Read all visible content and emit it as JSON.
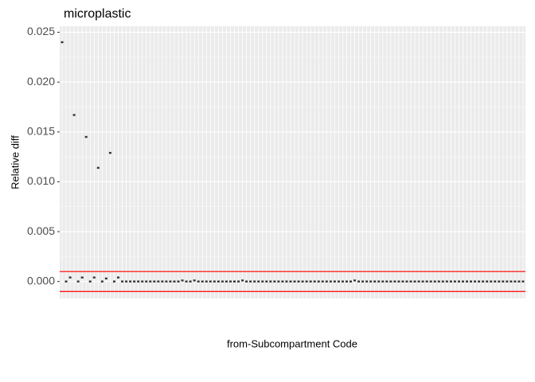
{
  "chart_data": {
    "type": "point",
    "title": "microplastic",
    "x_label": "from-Subcompartment Code",
    "y_label": "Relative diff",
    "categories": [
      null,
      null,
      null,
      null,
      null,
      null,
      null,
      null,
      null,
      null,
      null,
      null,
      null,
      null,
      null,
      null,
      null,
      null,
      null,
      null,
      null,
      null,
      null,
      null,
      null,
      null,
      null,
      null,
      null,
      null,
      null,
      null,
      null,
      null,
      null,
      null,
      null,
      null,
      null,
      null,
      null,
      null,
      null,
      null,
      null,
      null,
      null,
      null,
      null,
      null,
      null,
      null,
      null,
      null,
      null,
      null,
      null,
      null,
      null,
      null,
      null,
      null,
      null,
      null,
      null,
      null,
      null,
      null,
      null,
      null,
      null,
      null,
      null,
      null,
      null,
      null,
      null,
      null,
      null,
      null,
      null,
      null,
      null,
      null,
      null,
      null,
      null,
      null,
      null,
      null,
      null,
      null,
      null,
      null,
      null,
      null,
      null,
      null,
      null,
      null,
      null,
      null,
      null,
      null,
      null,
      null,
      null,
      null,
      null,
      null,
      null,
      null,
      null,
      null,
      null,
      null
    ],
    "values": [
      0.024,
      0,
      0.0004,
      0.0167,
      0,
      0.0004,
      0.0145,
      0,
      0.0004,
      0.0114,
      0,
      0.0003,
      0.0129,
      0,
      0.0004,
      0,
      0,
      0,
      0,
      0,
      0,
      0,
      0,
      0,
      0,
      0,
      0,
      0,
      0,
      0,
      0.0001,
      0,
      0,
      0.0001,
      0,
      0,
      0,
      0,
      0,
      0,
      0,
      0,
      0,
      0,
      0,
      0.0001,
      0,
      0,
      0,
      0,
      0,
      0,
      0,
      0,
      0,
      0,
      0,
      0,
      0,
      0,
      0,
      0,
      0,
      0,
      0,
      0,
      0,
      0,
      0,
      0,
      0,
      0,
      0,
      0.0001,
      0,
      0,
      0,
      0,
      0,
      0,
      0,
      0,
      0,
      0,
      0,
      0,
      0,
      0,
      0,
      0,
      0,
      0,
      0,
      0,
      0,
      0,
      0,
      0,
      0,
      0,
      0,
      0,
      0,
      0,
      0,
      0,
      0,
      0,
      0,
      0,
      0,
      0,
      0,
      0,
      0,
      0
    ],
    "color": "#333333",
    "hlines": [
      0.001,
      -0.001
    ],
    "hline_color": "#ff0000",
    "ylim": [
      -0.0017,
      0.0256
    ],
    "yticks": [
      {
        "value": 0,
        "label": "0.000"
      },
      {
        "value": 0.005,
        "label": "0.005"
      },
      {
        "value": 0.01,
        "label": "0.010"
      },
      {
        "value": 0.015,
        "label": "0.015"
      },
      {
        "value": 0.02,
        "label": "0.020"
      },
      {
        "value": 0.025,
        "label": "0.025"
      }
    ],
    "grid": true
  }
}
